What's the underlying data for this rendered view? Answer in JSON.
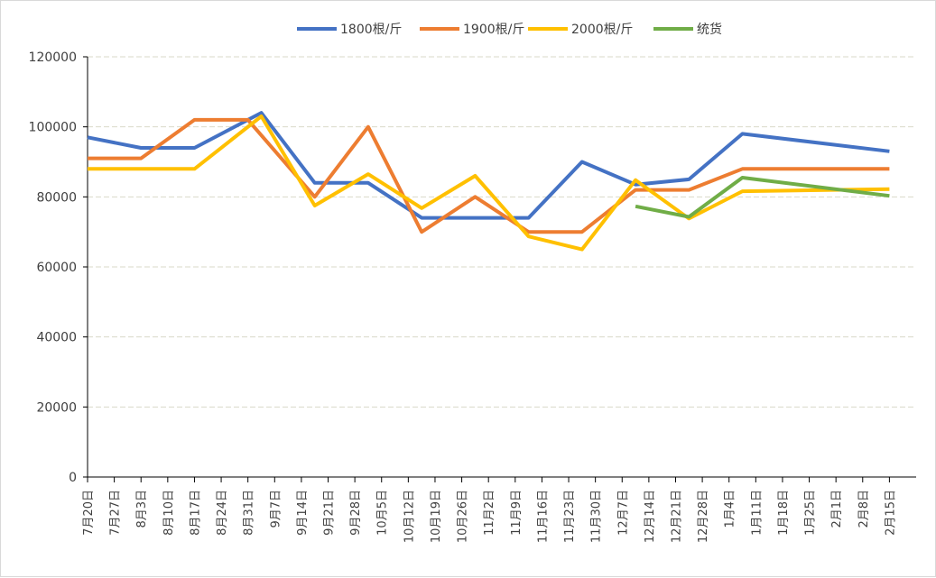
{
  "chart_data": {
    "type": "line",
    "title": "",
    "xlabel": "",
    "ylabel": "",
    "ylim": [
      0,
      120000
    ],
    "y_ticks": [
      0,
      20000,
      40000,
      60000,
      80000,
      100000,
      120000
    ],
    "grid": true,
    "legend_position": "top",
    "categories": [
      "7月20日",
      "7月27日",
      "8月3日",
      "8月10日",
      "8月17日",
      "8月24日",
      "8月31日",
      "9月7日",
      "9月14日",
      "9月21日",
      "9月28日",
      "10月5日",
      "10月12日",
      "10月19日",
      "10月26日",
      "11月2日",
      "11月9日",
      "11月16日",
      "11月23日",
      "11月30日",
      "12月7日",
      "12月14日",
      "12月21日",
      "12月28日",
      "1月4日",
      "1月11日",
      "1月18日",
      "1月25日",
      "2月1日",
      "2月8日",
      "2月15日"
    ],
    "series": [
      {
        "name": "1800根/斤",
        "color": "#4472c4",
        "values": [
          [
            0,
            97000
          ],
          [
            2,
            94000
          ],
          [
            4,
            94000
          ],
          [
            6.5,
            104000
          ],
          [
            8.5,
            84000
          ],
          [
            10.5,
            84000
          ],
          [
            12.5,
            74000
          ],
          [
            14.5,
            74000
          ],
          [
            16.5,
            74000
          ],
          [
            18.5,
            90000
          ],
          [
            20.5,
            83500
          ],
          [
            22.5,
            85000
          ],
          [
            24.5,
            98000
          ],
          [
            30,
            93000
          ]
        ]
      },
      {
        "name": "1900根/斤",
        "color": "#ed7d31",
        "values": [
          [
            0,
            91000
          ],
          [
            2,
            91000
          ],
          [
            4,
            102000
          ],
          [
            6,
            102000
          ],
          [
            8.5,
            80000
          ],
          [
            10.5,
            100000
          ],
          [
            12.5,
            70000
          ],
          [
            14.5,
            80000
          ],
          [
            16.5,
            70000
          ],
          [
            18.5,
            70000
          ],
          [
            20.5,
            82000
          ],
          [
            22.5,
            82000
          ],
          [
            24.5,
            88000
          ],
          [
            30,
            88000
          ]
        ]
      },
      {
        "name": "2000根/斤",
        "color": "#ffc000",
        "values": [
          [
            0,
            88000
          ],
          [
            2,
            88000
          ],
          [
            4,
            88000
          ],
          [
            6.5,
            103000
          ],
          [
            8.5,
            77500
          ],
          [
            10.5,
            86500
          ],
          [
            12.5,
            76800
          ],
          [
            14.5,
            86000
          ],
          [
            16.5,
            68700
          ],
          [
            18.5,
            65000
          ],
          [
            20.5,
            84800
          ],
          [
            22.5,
            73800
          ],
          [
            24.5,
            81600
          ],
          [
            30,
            82200
          ]
        ]
      },
      {
        "name": "统货",
        "color": "#70ad47",
        "values": [
          [
            20.5,
            77300
          ],
          [
            22.5,
            74300
          ],
          [
            24.5,
            85500
          ],
          [
            30,
            80300
          ]
        ]
      }
    ]
  }
}
